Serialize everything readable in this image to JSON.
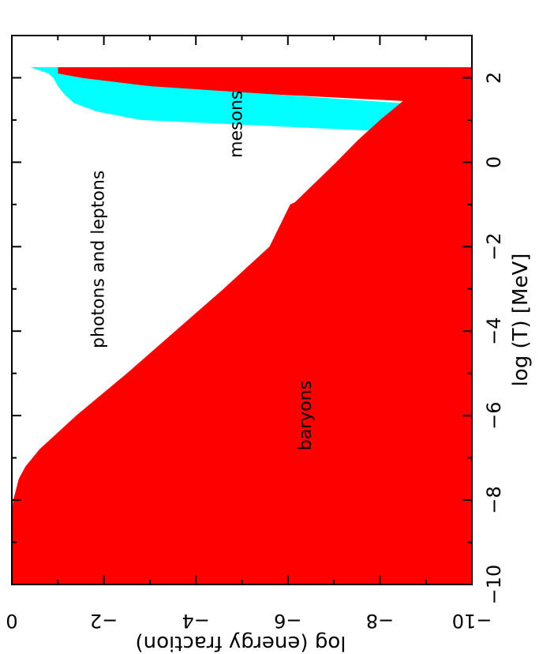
{
  "chart_data": {
    "type": "area",
    "orientation": "rotated-90-clockwise",
    "title": "",
    "xlabel": "log (T)   [MeV]",
    "ylabel": "log (energy fraction)",
    "xlim": [
      -10,
      3
    ],
    "ylim": [
      -10,
      0
    ],
    "xticks": [
      -10,
      -8,
      -6,
      -4,
      -2,
      0,
      2
    ],
    "xtick_labels": [
      "−10",
      "−8",
      "−6",
      "−4",
      "−2",
      "0",
      "2"
    ],
    "yticks": [
      -10,
      -8,
      -6,
      -4,
      -2,
      0
    ],
    "ytick_labels": [
      "−10",
      "−8",
      "−6",
      "−4",
      "−2",
      "0"
    ],
    "grid": false,
    "legend": "none",
    "series": [
      {
        "name": "baryons",
        "color": "#ff0000",
        "boundary": {
          "x": [
            -10,
            -9,
            -8.2,
            -8,
            -7.8,
            -7.5,
            -7.2,
            -7.0,
            -6.8,
            -6.5,
            -6.0,
            -5.5,
            -5.0,
            -4.0,
            -3.0,
            -2.0,
            -1.0,
            -0.95,
            0.0,
            0.5,
            1.0,
            1.45,
            1.7,
            1.9,
            2.1,
            2.25
          ],
          "y": [
            0,
            0,
            -0.01,
            -0.03,
            -0.08,
            -0.15,
            -0.3,
            -0.45,
            -0.6,
            -0.9,
            -1.4,
            -1.95,
            -2.5,
            -3.55,
            -4.6,
            -5.6,
            -6.05,
            -6.15,
            -7.05,
            -7.5,
            -8.0,
            -8.5,
            -4.0,
            -2.0,
            -1.0,
            -1.0
          ]
        }
      },
      {
        "name": "mesons",
        "color": "#00ffff",
        "boundary": {
          "x": [
            0.75,
            1.0,
            1.2,
            1.4,
            1.6,
            1.8,
            2.0,
            2.1,
            2.25
          ],
          "y": [
            -7.75,
            -2.8,
            -1.85,
            -1.35,
            -1.15,
            -1.0,
            -0.9,
            -0.8,
            -0.4
          ]
        }
      },
      {
        "name": "photons and leptons",
        "color": "#ffffff"
      }
    ],
    "region_labels": [
      {
        "text": "photons and leptons",
        "x": -2.3,
        "y": -2.0
      },
      {
        "text": "mesons",
        "x": 0.9,
        "y": -5.0
      },
      {
        "text": "baryons",
        "x": -6.0,
        "y": -6.5
      }
    ]
  }
}
